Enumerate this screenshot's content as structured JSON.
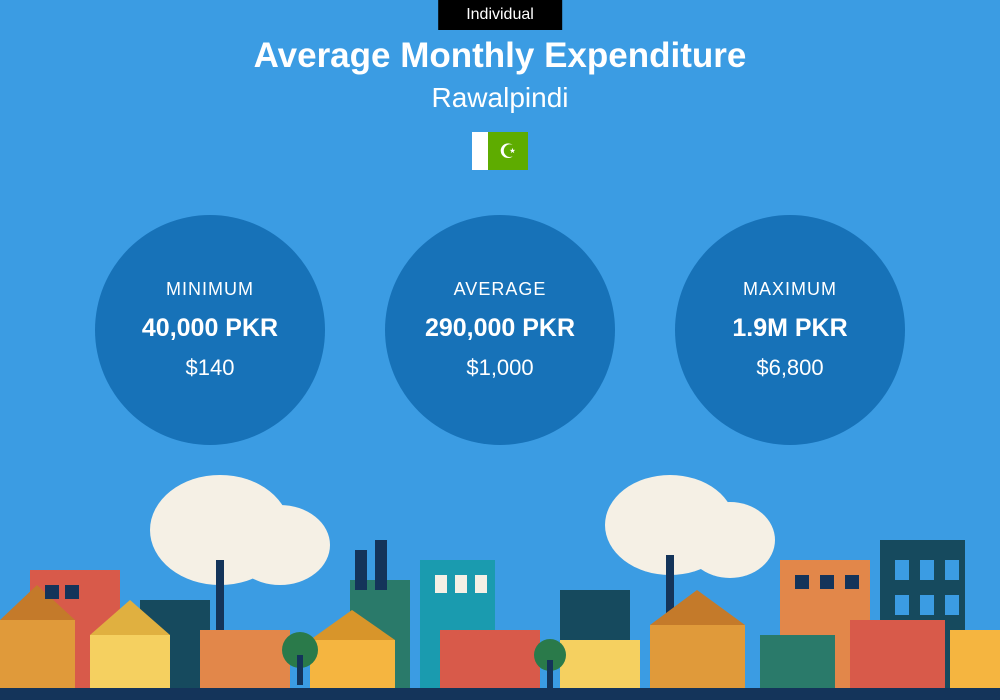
{
  "badge_label": "Individual",
  "title": "Average Monthly Expenditure",
  "city": "Rawalpindi",
  "background_color": "#3b9ce3",
  "circle_color": "#1772b8",
  "text_color": "#ffffff",
  "badge_bg": "#000000",
  "badge_text_color": "#ffffff",
  "flag": {
    "white": "#ffffff",
    "green": "#5eac00"
  },
  "stats": [
    {
      "label": "MINIMUM",
      "value_pkr": "40,000 PKR",
      "value_usd": "$140"
    },
    {
      "label": "AVERAGE",
      "value_pkr": "290,000 PKR",
      "value_usd": "$1,000"
    },
    {
      "label": "MAXIMUM",
      "value_pkr": "1.9M PKR",
      "value_usd": "$6,800"
    }
  ],
  "cityscape": {
    "cloud_color": "#f5f0e5",
    "ground_color": "#14345a",
    "buildings": [
      {
        "color": "#e09a3a"
      },
      {
        "color": "#d85a4a"
      },
      {
        "color": "#f5d060"
      },
      {
        "color": "#2a7a6a"
      },
      {
        "color": "#1a9baf"
      },
      {
        "color": "#164a5e"
      },
      {
        "color": "#f5b540"
      },
      {
        "color": "#e2874a"
      },
      {
        "color": "#d85a4a"
      }
    ],
    "tree_color": "#2a7a4a"
  },
  "typography": {
    "title_fontsize": 35,
    "title_weight": 700,
    "subtitle_fontsize": 28,
    "stat_label_fontsize": 18,
    "stat_value_fontsize": 25,
    "stat_value_weight": 700,
    "stat_usd_fontsize": 22
  },
  "layout": {
    "circle_diameter": 230,
    "circle_gap": 60
  }
}
